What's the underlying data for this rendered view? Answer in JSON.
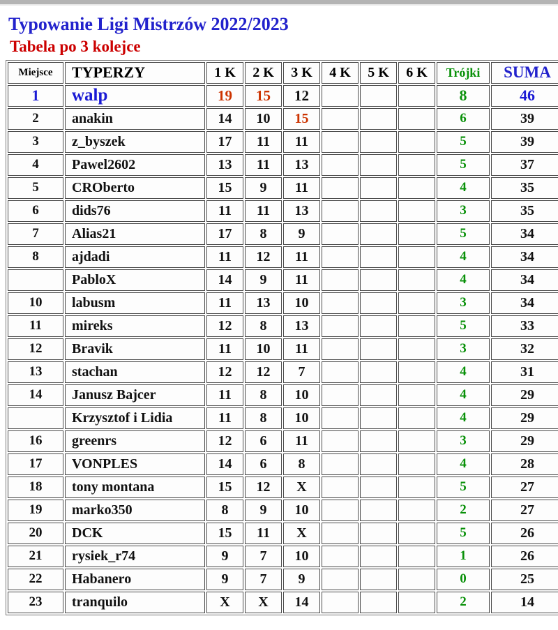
{
  "colors": {
    "title_blue": "#2222cc",
    "subtitle_red": "#cc0000",
    "green": "#089008",
    "orange": "#cc3300",
    "leader_blue": "#1a1ad4"
  },
  "header": {
    "title": "Typowanie Ligi Mistrzów 2022/2023",
    "subtitle": "Tabela po 3 kolejce"
  },
  "table": {
    "columns": [
      "Miejsce",
      "TYPERZY",
      "1 K",
      "2 K",
      "3 K",
      "4 K",
      "5 K",
      "6 K",
      "Trójki",
      "SUMA"
    ],
    "rows": [
      {
        "place": "1",
        "name": "walp",
        "scores": [
          "19",
          "15",
          "12",
          "",
          "",
          ""
        ],
        "hot": [
          true,
          true,
          false,
          false,
          false,
          false
        ],
        "triples": "8",
        "sum": "46",
        "leader": true
      },
      {
        "place": "2",
        "name": "anakin",
        "scores": [
          "14",
          "10",
          "15",
          "",
          "",
          ""
        ],
        "hot": [
          false,
          false,
          true,
          false,
          false,
          false
        ],
        "triples": "6",
        "sum": "39"
      },
      {
        "place": "3",
        "name": "z_byszek",
        "scores": [
          "17",
          "11",
          "11",
          "",
          "",
          ""
        ],
        "triples": "5",
        "sum": "39"
      },
      {
        "place": "4",
        "name": "Pawel2602",
        "scores": [
          "13",
          "11",
          "13",
          "",
          "",
          ""
        ],
        "triples": "5",
        "sum": "37"
      },
      {
        "place": "5",
        "name": "CROberto",
        "scores": [
          "15",
          "9",
          "11",
          "",
          "",
          ""
        ],
        "triples": "4",
        "sum": "35"
      },
      {
        "place": "6",
        "name": "dids76",
        "scores": [
          "11",
          "11",
          "13",
          "",
          "",
          ""
        ],
        "triples": "3",
        "sum": "35"
      },
      {
        "place": "7",
        "name": "Alias21",
        "scores": [
          "17",
          "8",
          "9",
          "",
          "",
          ""
        ],
        "triples": "5",
        "sum": "34"
      },
      {
        "place": "8",
        "name": "ajdadi",
        "scores": [
          "11",
          "12",
          "11",
          "",
          "",
          ""
        ],
        "triples": "4",
        "sum": "34"
      },
      {
        "place": "",
        "name": "PabloX",
        "scores": [
          "14",
          "9",
          "11",
          "",
          "",
          ""
        ],
        "triples": "4",
        "sum": "34"
      },
      {
        "place": "10",
        "name": "labusm",
        "scores": [
          "11",
          "13",
          "10",
          "",
          "",
          ""
        ],
        "triples": "3",
        "sum": "34"
      },
      {
        "place": "11",
        "name": "mireks",
        "scores": [
          "12",
          "8",
          "13",
          "",
          "",
          ""
        ],
        "triples": "5",
        "sum": "33"
      },
      {
        "place": "12",
        "name": "Bravik",
        "scores": [
          "11",
          "10",
          "11",
          "",
          "",
          ""
        ],
        "triples": "3",
        "sum": "32"
      },
      {
        "place": "13",
        "name": "stachan",
        "scores": [
          "12",
          "12",
          "7",
          "",
          "",
          ""
        ],
        "triples": "4",
        "sum": "31"
      },
      {
        "place": "14",
        "name": "Janusz Bajcer",
        "scores": [
          "11",
          "8",
          "10",
          "",
          "",
          ""
        ],
        "triples": "4",
        "sum": "29"
      },
      {
        "place": "",
        "name": "Krzysztof i Lidia",
        "scores": [
          "11",
          "8",
          "10",
          "",
          "",
          ""
        ],
        "triples": "4",
        "sum": "29"
      },
      {
        "place": "16",
        "name": "greenrs",
        "scores": [
          "12",
          "6",
          "11",
          "",
          "",
          ""
        ],
        "triples": "3",
        "sum": "29"
      },
      {
        "place": "17",
        "name": "VONPLES",
        "scores": [
          "14",
          "6",
          "8",
          "",
          "",
          ""
        ],
        "triples": "4",
        "sum": "28"
      },
      {
        "place": "18",
        "name": "tony montana",
        "scores": [
          "15",
          "12",
          "X",
          "",
          "",
          ""
        ],
        "triples": "5",
        "sum": "27"
      },
      {
        "place": "19",
        "name": "marko350",
        "scores": [
          "8",
          "9",
          "10",
          "",
          "",
          ""
        ],
        "triples": "2",
        "sum": "27"
      },
      {
        "place": "20",
        "name": "DCK",
        "scores": [
          "15",
          "11",
          "X",
          "",
          "",
          ""
        ],
        "triples": "5",
        "sum": "26"
      },
      {
        "place": "21",
        "name": "rysiek_r74",
        "scores": [
          "9",
          "7",
          "10",
          "",
          "",
          ""
        ],
        "triples": "1",
        "sum": "26"
      },
      {
        "place": "22",
        "name": "Habanero",
        "scores": [
          "9",
          "7",
          "9",
          "",
          "",
          ""
        ],
        "triples": "0",
        "sum": "25"
      },
      {
        "place": "23",
        "name": "tranquilo",
        "scores": [
          "X",
          "X",
          "14",
          "",
          "",
          ""
        ],
        "triples": "2",
        "sum": "14"
      }
    ]
  }
}
